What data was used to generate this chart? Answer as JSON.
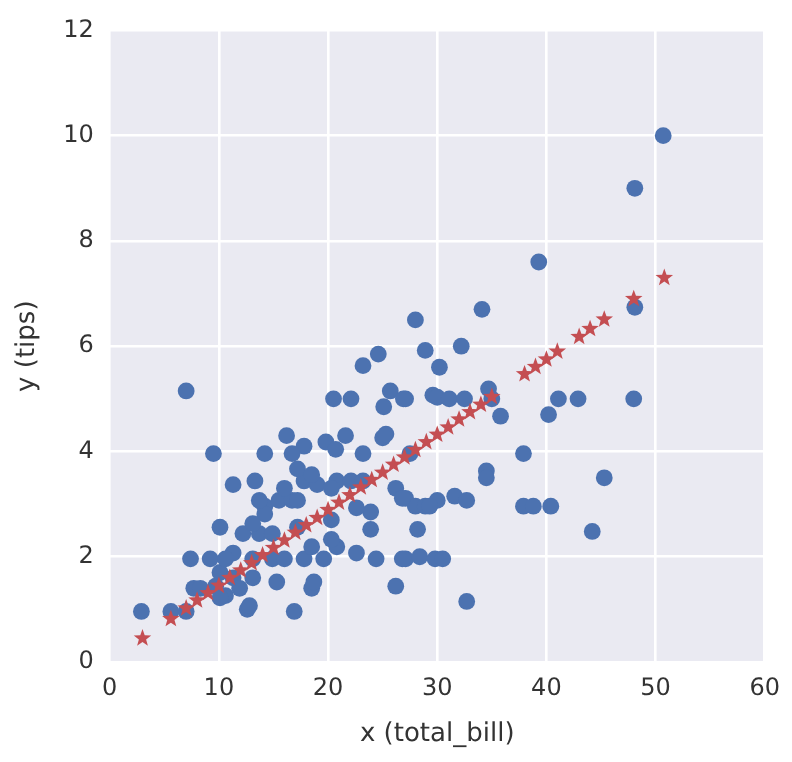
{
  "chart_data": {
    "type": "scatter",
    "xlabel": "x (total_bill)",
    "ylabel": "y (tips)",
    "xlim": [
      0,
      60
    ],
    "xticks": [
      0,
      10,
      20,
      30,
      40,
      50,
      60
    ],
    "ylim": [
      0,
      12
    ],
    "yticks": [
      0,
      2,
      4,
      6,
      8,
      10,
      12
    ],
    "grid": true,
    "series": [
      {
        "marker": "circle",
        "color": "#4c72b0",
        "x": [
          50.7,
          48.1,
          48.1,
          39.3,
          34.1,
          28,
          28.9,
          32.2,
          30.2,
          27.1,
          29.6,
          30,
          31.1,
          32.5,
          34.7,
          35,
          35.8,
          40.2,
          41.1,
          42.9,
          48,
          37.9,
          34.5,
          34.5,
          45.3,
          27.1,
          28,
          28.9,
          30,
          31.6,
          32.7,
          37.9,
          38.8,
          40.4,
          28.2,
          44.2,
          27.1,
          28.4,
          29.8,
          30.5,
          32.7,
          7,
          2.9,
          5.6,
          7,
          9.5,
          11.3,
          13.3,
          14.2,
          16.2,
          7.4,
          7.7,
          10.1,
          12.6,
          12.8,
          16.9,
          15.3,
          18.5,
          18.7,
          20.5,
          22.1,
          23.2,
          24.6,
          25.1,
          25.7,
          26.9,
          21.6,
          19.8,
          17.8,
          16.7,
          20.7,
          23.2,
          25,
          25.3,
          27.5,
          14.2,
          15.5,
          16.7,
          17.8,
          19,
          20.8,
          22.1,
          23.2,
          23.9,
          26.2,
          26.8,
          29.3,
          23.9,
          20.3,
          17.2,
          12.2,
          13.7,
          11.3,
          9.2,
          10.1,
          11.3,
          13.1,
          14.9,
          16,
          17.8,
          19.6,
          22.6,
          24.4,
          26.8,
          26.2,
          18.5,
          20.8,
          20.3,
          9.7,
          8.3,
          10.6,
          10.1,
          11.9,
          13.1,
          10.6,
          14.9,
          14.2,
          13.1,
          16,
          17.2,
          18.5,
          20.3,
          22.6,
          17.2,
          13.7
        ],
        "values": [
          10,
          9,
          6.74,
          7.6,
          6.7,
          6.5,
          5.92,
          6,
          5.6,
          5,
          5.07,
          5.03,
          5,
          5,
          5.19,
          5,
          4.67,
          4.7,
          5,
          5,
          5,
          3.96,
          3.63,
          3.5,
          3.5,
          3.11,
          2.96,
          2.96,
          3.07,
          3.15,
          3.07,
          2.96,
          2.96,
          2.96,
          2.52,
          2.48,
          1.96,
          2,
          1.96,
          1.96,
          1.15,
          5.15,
          0.96,
          0.96,
          0.96,
          3.96,
          3.37,
          3.44,
          3.96,
          4.3,
          1.96,
          1.4,
          2.56,
          1,
          1.07,
          0.96,
          1.52,
          1.4,
          1.52,
          5,
          5,
          5.63,
          5.85,
          4.85,
          5.15,
          5,
          4.3,
          4.18,
          4.1,
          3.96,
          4.04,
          3.96,
          4.26,
          4.33,
          3.96,
          2.96,
          3.07,
          3.07,
          3.44,
          3.37,
          3.44,
          3.44,
          3.44,
          2.85,
          3.3,
          3.11,
          2.96,
          2.52,
          2.7,
          2.56,
          2.44,
          2.44,
          2.07,
          1.96,
          1.7,
          1.6,
          1.6,
          1.96,
          1.96,
          1.96,
          1.96,
          2.07,
          1.96,
          1.96,
          1.44,
          2.19,
          2.19,
          2.33,
          1.44,
          1.4,
          1.26,
          1.22,
          1.4,
          1.96,
          1.96,
          2.44,
          2.81,
          2.63,
          3.3,
          3.67,
          3.56,
          3.3,
          2.93,
          3.07,
          3.07
        ]
      },
      {
        "marker": "star",
        "color": "#c44e52",
        "x": [
          3,
          5.6,
          7,
          8,
          9,
          10,
          11,
          12,
          13,
          14,
          15,
          16,
          17,
          18,
          19,
          20,
          21,
          22,
          23,
          24,
          25,
          26,
          27,
          28,
          29,
          30,
          31,
          32,
          33,
          34,
          35,
          38,
          39,
          40,
          41,
          43,
          44,
          45.3,
          48,
          50.8
        ],
        "values": [
          0.45,
          0.82,
          1.02,
          1.17,
          1.31,
          1.45,
          1.6,
          1.74,
          1.88,
          2.03,
          2.17,
          2.31,
          2.46,
          2.6,
          2.74,
          2.89,
          3.03,
          3.17,
          3.32,
          3.46,
          3.6,
          3.75,
          3.89,
          4.03,
          4.18,
          4.32,
          4.46,
          4.61,
          4.75,
          4.89,
          5.04,
          5.47,
          5.61,
          5.75,
          5.9,
          6.18,
          6.33,
          6.51,
          6.9,
          7.3
        ]
      }
    ]
  }
}
